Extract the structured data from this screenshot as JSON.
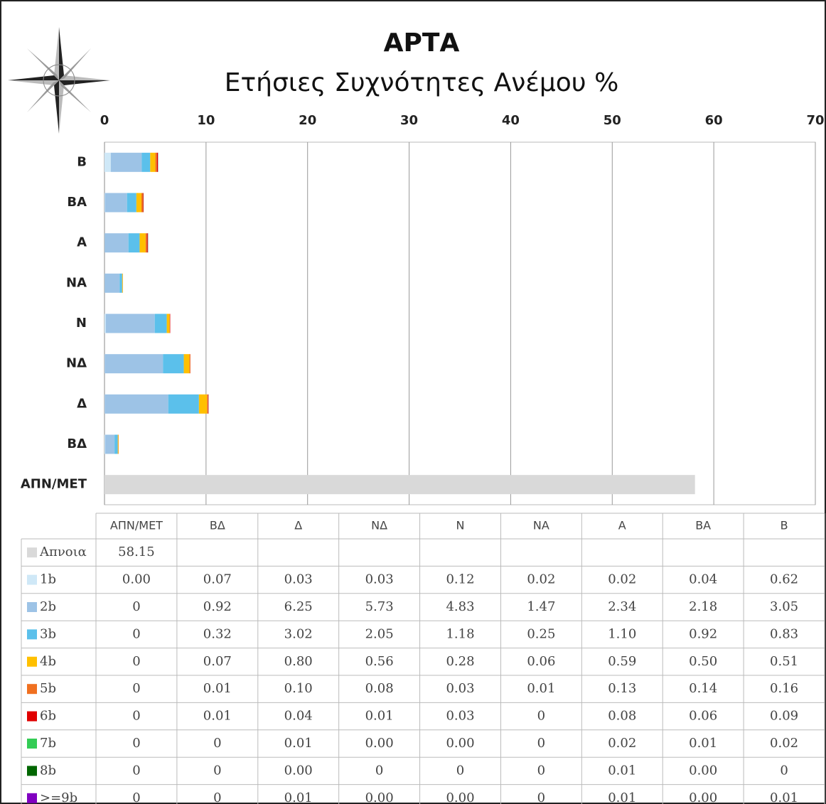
{
  "chart_data": {
    "type": "bar",
    "orientation": "horizontal",
    "stacked": true,
    "title": "ΑΡΤΑ",
    "subtitle": "Ετήσιες Συχνότητες Ανέμου %",
    "categories": [
      "ΑΠΝ/ΜΕΤ",
      "ΒΔ",
      "Δ",
      "ΝΔ",
      "Ν",
      "ΝΑ",
      "Α",
      "ΒΑ",
      "Β"
    ],
    "xlim": [
      0,
      70
    ],
    "xticks": [
      0,
      10,
      20,
      30,
      40,
      50,
      60,
      70
    ],
    "grid": true,
    "series": [
      {
        "name": "Απνοια",
        "color": "#d9d9d9",
        "values": [
          58.15,
          null,
          null,
          null,
          null,
          null,
          null,
          null,
          null
        ],
        "value_labels": [
          "58.15",
          null,
          null,
          null,
          null,
          null,
          null,
          null,
          null
        ]
      },
      {
        "name": "1b",
        "color": "#cfe8f7",
        "values": [
          0,
          0.07,
          0.03,
          0.03,
          0.12,
          0.02,
          0.02,
          0.04,
          0.62
        ],
        "value_labels": [
          "0.00",
          "0.07",
          "0.03",
          "0.03",
          "0.12",
          "0.02",
          "0.02",
          "0.04",
          "0.62"
        ]
      },
      {
        "name": "2b",
        "color": "#9dc3e6",
        "values": [
          0,
          0.92,
          6.25,
          5.73,
          4.83,
          1.47,
          2.34,
          2.18,
          3.05
        ],
        "value_labels": [
          "0",
          "0.92",
          "6.25",
          "5.73",
          "4.83",
          "1.47",
          "2.34",
          "2.18",
          "3.05"
        ]
      },
      {
        "name": "3b",
        "color": "#5bc0eb",
        "values": [
          0,
          0.32,
          3.02,
          2.05,
          1.18,
          0.25,
          1.1,
          0.92,
          0.83
        ],
        "value_labels": [
          "0",
          "0.32",
          "3.02",
          "2.05",
          "1.18",
          "0.25",
          "1.10",
          "0.92",
          "0.83"
        ]
      },
      {
        "name": "4b",
        "color": "#ffc000",
        "values": [
          0,
          0.07,
          0.8,
          0.56,
          0.28,
          0.06,
          0.59,
          0.5,
          0.51
        ],
        "value_labels": [
          "0",
          "0.07",
          "0.80",
          "0.56",
          "0.28",
          "0.06",
          "0.59",
          "0.50",
          "0.51"
        ]
      },
      {
        "name": "5b",
        "color": "#f07020",
        "values": [
          0,
          0.01,
          0.1,
          0.08,
          0.03,
          0.01,
          0.13,
          0.14,
          0.16
        ],
        "value_labels": [
          "0",
          "0.01",
          "0.10",
          "0.08",
          "0.03",
          "0.01",
          "0.13",
          "0.14",
          "0.16"
        ]
      },
      {
        "name": "6b",
        "color": "#e00000",
        "values": [
          0,
          0.01,
          0.04,
          0.01,
          0.03,
          0,
          0.08,
          0.06,
          0.09
        ],
        "value_labels": [
          "0",
          "0.01",
          "0.04",
          "0.01",
          "0.03",
          "0",
          "0.08",
          "0.06",
          "0.09"
        ]
      },
      {
        "name": "7b",
        "color": "#33cc55",
        "values": [
          0,
          0,
          0.01,
          0,
          0,
          0,
          0.02,
          0.01,
          0.02
        ],
        "value_labels": [
          "0",
          "0",
          "0.01",
          "0.00",
          "0.00",
          "0",
          "0.02",
          "0.01",
          "0.02"
        ]
      },
      {
        "name": "8b",
        "color": "#006600",
        "values": [
          0,
          0,
          0,
          0,
          0,
          0,
          0.01,
          0,
          0
        ],
        "value_labels": [
          "0",
          "0",
          "0.00",
          "0",
          "0",
          "0",
          "0.01",
          "0.00",
          "0"
        ]
      },
      {
        "name": ">=9b",
        "color": "#8000c0",
        "values": [
          0,
          0,
          0.01,
          0,
          0,
          0,
          0.01,
          0,
          0.01
        ],
        "value_labels": [
          "0",
          "0",
          "0.01",
          "0.00",
          "0.00",
          "0",
          "0.01",
          "0.00",
          "0.01"
        ]
      }
    ]
  }
}
